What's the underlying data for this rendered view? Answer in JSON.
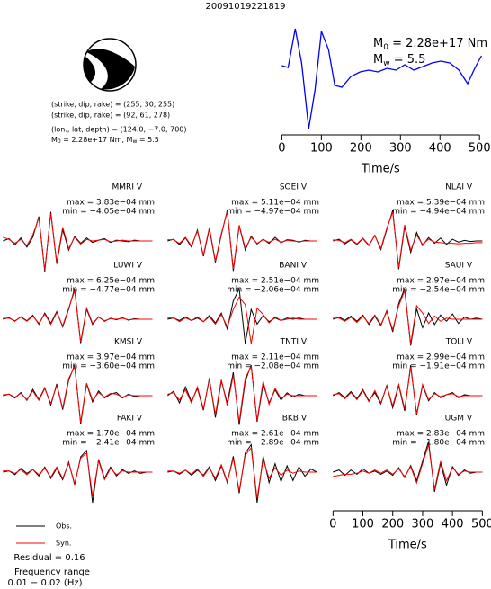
{
  "title": "20091019221819",
  "mechanism": {
    "lines": [
      "(strike, dip, rake) = (255, 30, 255)",
      "(strike, dip, rake) = (92, 61, 278)",
      "(lon., lat, depth) = (124.0, −7.0, 700)"
    ],
    "moment": [
      "M",
      "0",
      " = 2.28e+17 Nm, M",
      "w",
      " = 5.5"
    ]
  },
  "notes": {
    "residual": "Residual = 0.16",
    "freq_title": "Frequency range",
    "freq_range": "0.01 − 0.02 (Hz)"
  },
  "chart_data": [
    {
      "type": "line",
      "color": "#0000ff",
      "annotations": {
        "m0": [
          "M",
          "0",
          " = 2.28e+17 Nm"
        ],
        "mw": [
          "M",
          "w",
          " = 5.5"
        ]
      },
      "x": [
        0,
        16,
        34,
        50,
        68,
        84,
        100,
        118,
        134,
        152,
        175,
        198,
        220,
        243,
        266,
        289,
        311,
        334,
        357,
        380,
        402,
        425,
        448,
        470,
        489,
        505
      ],
      "values": [
        0.7,
        0.5,
        4.8,
        1.0,
        -6.3,
        -2.0,
        4.5,
        2.5,
        -1.5,
        -1.7,
        -0.5,
        0,
        0.2,
        0,
        0.4,
        0.2,
        0.8,
        0.2,
        0.6,
        1.0,
        1.2,
        1.0,
        0.2,
        -1.3,
        0.5,
        1.8
      ],
      "xlim": [
        -10,
        520
      ],
      "xticks": [
        0,
        100,
        200,
        300,
        400,
        500
      ],
      "xlabel": "Time/s"
    },
    {
      "type": "waveforms",
      "xlabel": "Time/s",
      "xlim": [
        -10,
        520
      ],
      "xticks": [
        0,
        100,
        200,
        300,
        400,
        500
      ],
      "x": [
        0,
        20,
        40,
        60,
        80,
        100,
        120,
        140,
        160,
        180,
        200,
        220,
        240,
        260,
        280,
        300,
        320,
        340,
        360,
        380,
        400,
        420,
        440,
        460,
        480,
        500
      ],
      "series": [
        {
          "name": "Obs.",
          "color": "#000000"
        },
        {
          "name": "Syn.",
          "color": "#ff0000"
        }
      ],
      "stations": [
        {
          "name": "MMRI V",
          "max_label": "max = 3.83e−04 mm",
          "min_label": "min = −4.05e−04 mm",
          "obs": [
            0,
            0.3,
            -0.5,
            0.4,
            -0.8,
            0.5,
            3.2,
            -4.0,
            3.8,
            -3.0,
            1.5,
            -1.2,
            0.6,
            -0.3,
            0.4,
            -0.2,
            0.1,
            0.3,
            -0.2,
            0.1,
            0,
            -0.1,
            0.1,
            0,
            0,
            0
          ],
          "syn": [
            0.5,
            0.2,
            -0.3,
            0.2,
            -0.6,
            0.8,
            3.0,
            -3.8,
            3.6,
            -2.8,
            1.8,
            -1.0,
            0.5,
            -0.4,
            0.2,
            0,
            0.1,
            0.2,
            -0.1,
            0,
            0.1,
            0,
            0,
            0,
            0,
            0
          ]
        },
        {
          "name": "SOEI V",
          "max_label": "max = 5.11e−04 mm",
          "min_label": "min = −4.97e−04 mm",
          "obs": [
            0,
            0.3,
            -0.6,
            0.5,
            -1.0,
            1.8,
            -2.5,
            2.0,
            -3.5,
            1.0,
            5.0,
            -4.9,
            2.5,
            -1.5,
            0.8,
            -0.5,
            0.3,
            -0.4,
            0.6,
            -0.3,
            0.2,
            0.1,
            -0.2,
            0.1,
            0,
            0
          ],
          "syn": [
            0.2,
            0.2,
            -0.4,
            0.6,
            -0.8,
            1.6,
            -2.3,
            2.2,
            -3.3,
            1.2,
            4.8,
            -4.6,
            2.6,
            -1.2,
            0.6,
            -0.4,
            0.2,
            -0.2,
            0.3,
            -0.2,
            0.1,
            0,
            -0.1,
            0,
            0,
            0
          ]
        },
        {
          "name": "NLAI V",
          "max_label": "max = 5.39e−04 mm",
          "min_label": "min = −4.94e−04 mm",
          "obs": [
            0,
            0.3,
            -0.5,
            0.2,
            -0.6,
            0.4,
            -0.8,
            1.0,
            -1.5,
            2.0,
            5.3,
            -4.9,
            2.5,
            -2.0,
            1.5,
            -0.8,
            0.6,
            -0.4,
            0.5,
            -0.6,
            0.3,
            -0.2,
            0.1,
            -0.1,
            0,
            0
          ],
          "syn": [
            0.2,
            0.1,
            -0.3,
            0.3,
            -0.5,
            0.5,
            -0.7,
            0.9,
            -1.3,
            2.2,
            5.0,
            -4.6,
            2.8,
            -1.6,
            1.0,
            -0.6,
            0.3,
            -0.2,
            -0.3,
            -0.4,
            -0.4,
            -0.5,
            -0.4,
            -0.4,
            -0.3,
            -0.3
          ]
        },
        {
          "name": "LUWI V",
          "max_label": "max = 6.25e−04 mm",
          "min_label": "min = −4.77e−04 mm",
          "obs": [
            0,
            0.3,
            -0.4,
            0.5,
            -0.3,
            0.8,
            -1.0,
            1.2,
            -0.8,
            1.5,
            -1.5,
            2.0,
            6.0,
            -4.7,
            2.0,
            -1.0,
            0.5,
            -0.4,
            0.2,
            -0.1,
            0.3,
            -0.2,
            0.1,
            0,
            0,
            0
          ],
          "syn": [
            0.2,
            0.2,
            -0.3,
            0.4,
            -0.4,
            0.6,
            -0.8,
            1.0,
            -1.0,
            1.3,
            -1.3,
            2.2,
            5.6,
            -4.4,
            2.2,
            -0.8,
            0.4,
            -0.3,
            0.1,
            0,
            0.2,
            -0.1,
            0,
            0,
            0,
            0
          ]
        },
        {
          "name": "BANI V",
          "max_label": "max = 2.51e−04 mm",
          "min_label": "min = −2.06e−04 mm",
          "obs": [
            0,
            0.1,
            -0.1,
            0.2,
            -0.1,
            0.1,
            -0.2,
            0.3,
            -0.3,
            0.5,
            -0.8,
            1.5,
            2.5,
            -2.0,
            0.8,
            -0.4,
            0.3,
            -0.2,
            0.1,
            -0.1,
            0.1,
            0,
            0.1,
            0,
            0,
            0
          ],
          "syn": [
            0.1,
            0.1,
            -0.2,
            0.1,
            -0.1,
            0.2,
            -0.2,
            0.2,
            -0.4,
            0.4,
            -0.6,
            0.8,
            1.8,
            1.2,
            -2.0,
            0.9,
            0.4,
            -0.3,
            0.2,
            -0.1,
            0,
            0.1,
            0,
            0,
            0,
            0
          ]
        },
        {
          "name": "SAUI V",
          "max_label": "max = 2.97e−04 mm",
          "min_label": "min = −2.54e−04 mm",
          "obs": [
            0,
            0.2,
            -0.1,
            0.3,
            -0.2,
            0.4,
            -0.5,
            0.3,
            -0.6,
            0.8,
            -1.2,
            1.5,
            2.9,
            -2.5,
            1.0,
            -0.8,
            0.6,
            -0.5,
            0.4,
            -0.2,
            0.5,
            -0.4,
            0.2,
            0,
            0.1,
            0
          ],
          "syn": [
            0.1,
            0.1,
            -0.2,
            0.2,
            -0.3,
            0.3,
            -0.4,
            0.4,
            -0.5,
            0.7,
            -1.0,
            1.3,
            2.7,
            -2.3,
            1.3,
            0.6,
            -0.4,
            0.3,
            -0.2,
            0.1,
            0,
            0,
            0,
            0,
            0,
            0
          ]
        },
        {
          "name": "KMSI V",
          "max_label": "max = 3.97e−04 mm",
          "min_label": "min = −3.60e−04 mm",
          "obs": [
            0,
            0.2,
            -0.3,
            0.4,
            -0.6,
            0.8,
            -0.5,
            1.0,
            -1.2,
            1.5,
            -1.8,
            2.0,
            3.9,
            -3.6,
            1.5,
            -0.8,
            0.6,
            -0.3,
            0.2,
            0.4,
            -0.3,
            0.2,
            -0.1,
            0,
            0,
            0
          ],
          "syn": [
            0.1,
            0.2,
            -0.2,
            0.3,
            -0.5,
            0.6,
            -0.6,
            0.9,
            -1.0,
            1.3,
            -1.6,
            2.2,
            3.7,
            -3.4,
            1.6,
            -0.6,
            0.4,
            -0.2,
            0.3,
            0.2,
            -0.2,
            0.1,
            0,
            0,
            0,
            0
          ]
        },
        {
          "name": "TNTI V",
          "max_label": "max = 2.11e−04 mm",
          "min_label": "min = −2.08e−04 mm",
          "obs": [
            0,
            0.3,
            -0.5,
            0.6,
            -0.4,
            0.5,
            -1.0,
            1.2,
            -1.5,
            1.0,
            -0.5,
            1.6,
            -2.0,
            1.0,
            2.1,
            -1.8,
            0.8,
            -0.5,
            0.4,
            -0.3,
            0.2,
            -0.1,
            0.1,
            0,
            0,
            0
          ],
          "syn": [
            0.1,
            0.2,
            -0.3,
            0.4,
            -0.5,
            0.6,
            -0.9,
            1.1,
            -1.3,
            1.1,
            -0.7,
            1.4,
            -1.8,
            1.2,
            2.0,
            -1.7,
            1.0,
            -0.6,
            0.5,
            -0.2,
            0.1,
            0,
            0,
            0,
            0,
            0
          ]
        },
        {
          "name": "TOLI V",
          "max_label": "max = 2.99e−04 mm",
          "min_label": "min = −1.91e−04 mm",
          "obs": [
            0,
            0.3,
            -0.2,
            0.4,
            -0.3,
            0.6,
            -0.5,
            0.3,
            -0.8,
            1.0,
            -1.2,
            1.0,
            -1.5,
            3.0,
            -1.9,
            1.0,
            -0.5,
            0.3,
            -0.2,
            0.1,
            0.3,
            -0.2,
            0.1,
            0,
            0,
            0
          ],
          "syn": [
            0.1,
            0.2,
            -0.3,
            0.3,
            -0.4,
            0.5,
            -0.6,
            0.5,
            -0.7,
            0.9,
            -1.0,
            1.1,
            -1.3,
            2.8,
            -1.8,
            1.1,
            -0.4,
            0.2,
            -0.1,
            0.1,
            0.2,
            -0.1,
            0,
            0,
            0,
            0
          ]
        },
        {
          "name": "FAKI V",
          "max_label": "max = 1.70e−04 mm",
          "min_label": "min = −2.41e−04 mm",
          "obs": [
            0,
            0.1,
            -0.2,
            0.3,
            -0.1,
            0.2,
            -0.3,
            0.4,
            -0.5,
            0.3,
            -0.6,
            0.8,
            -1.0,
            1.2,
            1.7,
            -2.4,
            1.0,
            -0.5,
            0.4,
            -0.3,
            0.2,
            -0.1,
            0.1,
            -0.1,
            0,
            0
          ],
          "syn": [
            0.1,
            0.1,
            -0.1,
            0.2,
            -0.2,
            0.2,
            -0.2,
            0.3,
            -0.4,
            0.4,
            -0.5,
            0.7,
            -0.9,
            1.1,
            1.5,
            -1.9,
            0.9,
            -0.6,
            0.3,
            -0.2,
            0.1,
            0,
            0,
            0,
            0,
            0
          ]
        },
        {
          "name": "BKB V",
          "max_label": "max = 2.61e−04 mm",
          "min_label": "min = −2.89e−04 mm",
          "obs": [
            0,
            0.1,
            -0.2,
            0.2,
            -0.3,
            0.2,
            -0.3,
            0.5,
            -0.8,
            0.6,
            -1.0,
            1.5,
            -2.0,
            1.8,
            2.6,
            -2.9,
            1.5,
            -1.0,
            0.8,
            -0.9,
            0.6,
            -0.8,
            0.5,
            -0.4,
            0.3,
            0
          ],
          "syn": [
            0.1,
            0.1,
            -0.1,
            0.2,
            -0.2,
            0.3,
            -0.4,
            0.4,
            -0.6,
            0.7,
            -0.9,
            1.3,
            -1.8,
            1.6,
            2.3,
            -2.5,
            1.2,
            -0.6,
            0.4,
            -0.3,
            0.2,
            -0.1,
            0.1,
            0,
            0,
            0
          ]
        },
        {
          "name": "UGM V",
          "max_label": "max = 2.83e−04 mm",
          "min_label": "min = −1.80e−04 mm",
          "obs": [
            0,
            0.2,
            -0.3,
            0.2,
            -0.2,
            0.3,
            -0.1,
            0.1,
            -0.2,
            0.1,
            -0.3,
            0.4,
            -0.5,
            0.6,
            -0.8,
            1.0,
            2.8,
            -1.8,
            0.8,
            -1.2,
            0.5,
            -0.3,
            0.2,
            -0.1,
            0,
            0
          ],
          "syn": [
            -0.4,
            -0.3,
            -0.2,
            -0.2,
            -0.1,
            0.1,
            -0.1,
            0.2,
            -0.1,
            0.2,
            -0.2,
            0.3,
            -0.4,
            0.5,
            -1.0,
            0.8,
            2.5,
            -1.6,
            1.0,
            -0.8,
            0.4,
            -0.2,
            0.1,
            0,
            0,
            0
          ]
        }
      ]
    }
  ]
}
